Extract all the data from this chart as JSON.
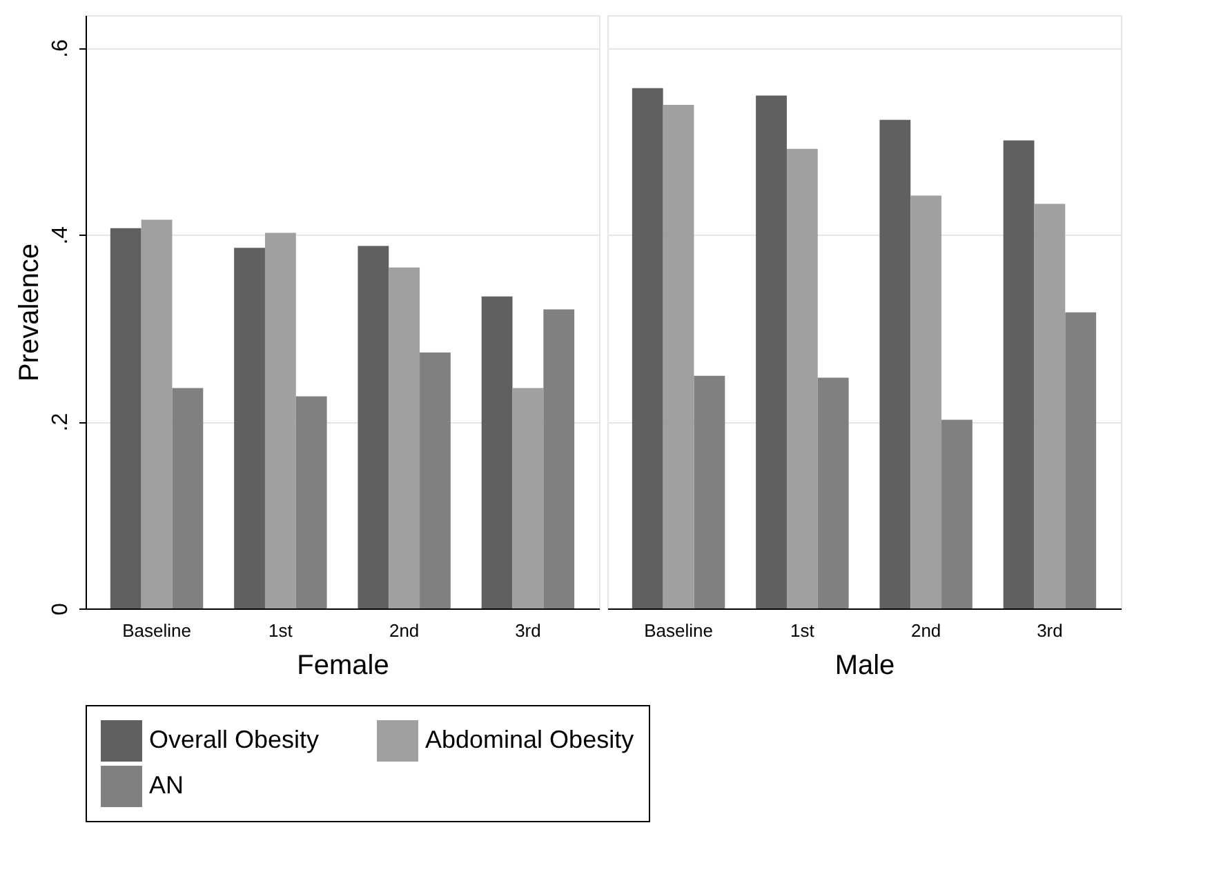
{
  "chart_data": [
    {
      "type": "bar",
      "xlabel": "Female",
      "ylabel": "Prevalence",
      "categories": [
        "Baseline",
        "1st",
        "2nd",
        "3rd"
      ],
      "series": [
        {
          "name": "Overall Obesity",
          "color": "#606060",
          "values": [
            0.407,
            0.386,
            0.388,
            0.334
          ]
        },
        {
          "name": "Abdominal Obesity",
          "color": "#a0a0a0",
          "values": [
            0.416,
            0.402,
            0.365,
            0.236
          ]
        },
        {
          "name": "AN",
          "color": "#808080",
          "values": [
            0.236,
            0.227,
            0.274,
            0.32
          ]
        }
      ],
      "ylim": [
        0,
        0.635
      ],
      "yticks": [
        0,
        {
          "value": 0.2,
          "label": ".2"
        },
        {
          "value": 0.4,
          "label": ".4"
        },
        {
          "value": 0.6,
          "label": ".6"
        }
      ],
      "grid": "y",
      "legend": "bottom"
    },
    {
      "type": "bar",
      "xlabel": "Male",
      "categories": [
        "Baseline",
        "1st",
        "2nd",
        "3rd"
      ],
      "series": [
        {
          "name": "Overall Obesity",
          "color": "#606060",
          "values": [
            0.557,
            0.549,
            0.523,
            0.501
          ]
        },
        {
          "name": "Abdominal Obesity",
          "color": "#a0a0a0",
          "values": [
            0.539,
            0.492,
            0.442,
            0.433
          ]
        },
        {
          "name": "AN",
          "color": "#808080",
          "values": [
            0.249,
            0.247,
            0.202,
            0.317
          ]
        }
      ],
      "ylim": [
        0,
        0.635
      ],
      "yticks": [
        0,
        0.2,
        0.4,
        0.6
      ],
      "grid": "y",
      "tick_labels": "x",
      "legend": "bottom"
    }
  ]
}
